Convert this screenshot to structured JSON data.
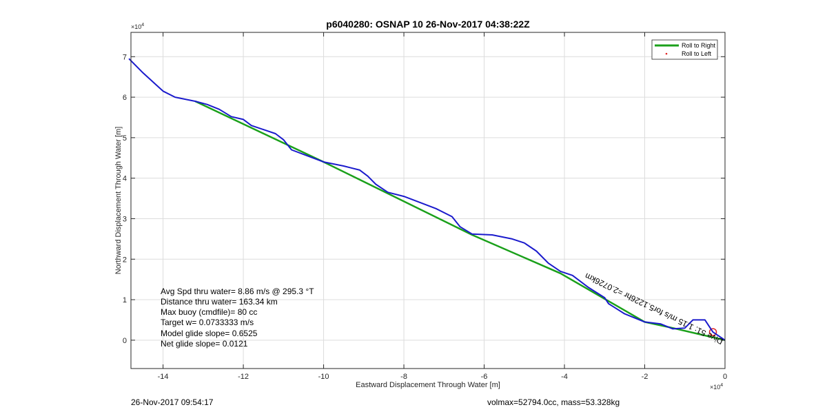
{
  "chart_data": {
    "type": "line",
    "title": "p6040280: OSNAP 10 26-Nov-2017 04:38:22Z",
    "xlabel": "Eastward Displacement Through Water [m]",
    "ylabel": "Northward Displacement Through Water [m]",
    "x_exponent_label": "× 10^4",
    "y_exponent_label": "× 10^4",
    "xlim": [
      -14.8,
      0
    ],
    "ylim": [
      -0.7,
      7.6
    ],
    "x_ticks": [
      -14,
      -12,
      -10,
      -8,
      -6,
      -4,
      -2,
      0
    ],
    "y_ticks": [
      0,
      1,
      2,
      3,
      4,
      5,
      6,
      7
    ],
    "x_tick_labels": [
      "-14",
      "-12",
      "-10",
      "-8",
      "-6",
      "-4",
      "-2",
      "0"
    ],
    "y_tick_labels": [
      "0",
      "1",
      "2",
      "3",
      "4",
      "5",
      "6",
      "7"
    ],
    "grid": true,
    "legend_placement": "top-right",
    "series": [
      {
        "name": "Roll to Right",
        "color": "#1aa01a",
        "style": "line",
        "x": [
          -13.2,
          -10.0,
          -6.3,
          -4.1,
          -2.0,
          -1.3,
          0.0
        ],
        "y": [
          5.9,
          4.4,
          2.6,
          1.65,
          0.45,
          0.3,
          0.0
        ]
      },
      {
        "name": "Roll to Left",
        "color": "#e02020",
        "style": "marker",
        "x": [
          -0.3
        ],
        "y": [
          0.2
        ]
      },
      {
        "name": "",
        "color": "#1a1acc",
        "style": "line",
        "x": [
          -14.85,
          -14.5,
          -14.0,
          -13.7,
          -13.2,
          -12.9,
          -12.6,
          -12.3,
          -12.0,
          -11.8,
          -11.5,
          -11.2,
          -11.0,
          -10.8,
          -10.4,
          -10.0,
          -9.5,
          -9.1,
          -8.9,
          -8.7,
          -8.4,
          -8.0,
          -7.6,
          -7.2,
          -6.8,
          -6.6,
          -6.3,
          -5.8,
          -5.3,
          -5.0,
          -4.7,
          -4.4,
          -4.1,
          -3.8,
          -3.4,
          -3.0,
          -2.9,
          -2.5,
          -2.0,
          -1.6,
          -1.3,
          -1.0,
          -0.8,
          -0.5,
          -0.3,
          0.0
        ],
        "y": [
          6.95,
          6.6,
          6.15,
          6.0,
          5.9,
          5.82,
          5.7,
          5.52,
          5.45,
          5.3,
          5.2,
          5.1,
          4.95,
          4.7,
          4.55,
          4.4,
          4.3,
          4.2,
          4.05,
          3.85,
          3.65,
          3.55,
          3.4,
          3.25,
          3.05,
          2.8,
          2.62,
          2.6,
          2.5,
          2.4,
          2.2,
          1.9,
          1.7,
          1.6,
          1.3,
          1.05,
          0.9,
          0.65,
          0.45,
          0.4,
          0.28,
          0.3,
          0.5,
          0.5,
          0.2,
          0.0
        ]
      }
    ],
    "annotations": {
      "avg_speed": "Avg Spd thru water=  8.86 m/s @ 295.3 °T",
      "distance": "Distance thru water= 163.34 km",
      "max_buoy": "Max buoy (cmdfile)= 80 cc",
      "target_w": "Target w= 0.0733333 m/s",
      "model_glide": "Model glide slope= 0.6525",
      "net_glide": "Net glide slope= 0.0121",
      "rotated_text": "Dive 51: 1.15 m/s for5.1226hr =2.0726km"
    }
  },
  "footer": {
    "left": "26-Nov-2017 09:54:17",
    "right": "volmax=52794.0cc, mass=53.328kg"
  }
}
